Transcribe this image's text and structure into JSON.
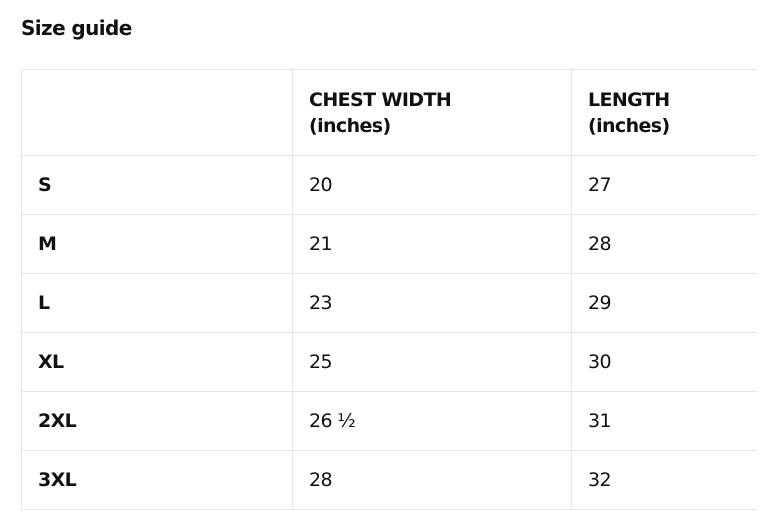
{
  "title": "Size guide",
  "table": {
    "headers": [
      {
        "line1": "",
        "line2": ""
      },
      {
        "line1": "CHEST WIDTH",
        "line2": "(inches)"
      },
      {
        "line1": "LENGTH",
        "line2": "(inches)"
      }
    ],
    "rows": [
      {
        "size": "S",
        "chest": "20",
        "length": "27"
      },
      {
        "size": "M",
        "chest": "21",
        "length": "28"
      },
      {
        "size": "L",
        "chest": "23",
        "length": "29"
      },
      {
        "size": "XL",
        "chest": "25",
        "length": "30"
      },
      {
        "size": "2XL",
        "chest": "26 ½",
        "length": "31"
      },
      {
        "size": "3XL",
        "chest": "28",
        "length": "32"
      }
    ]
  }
}
